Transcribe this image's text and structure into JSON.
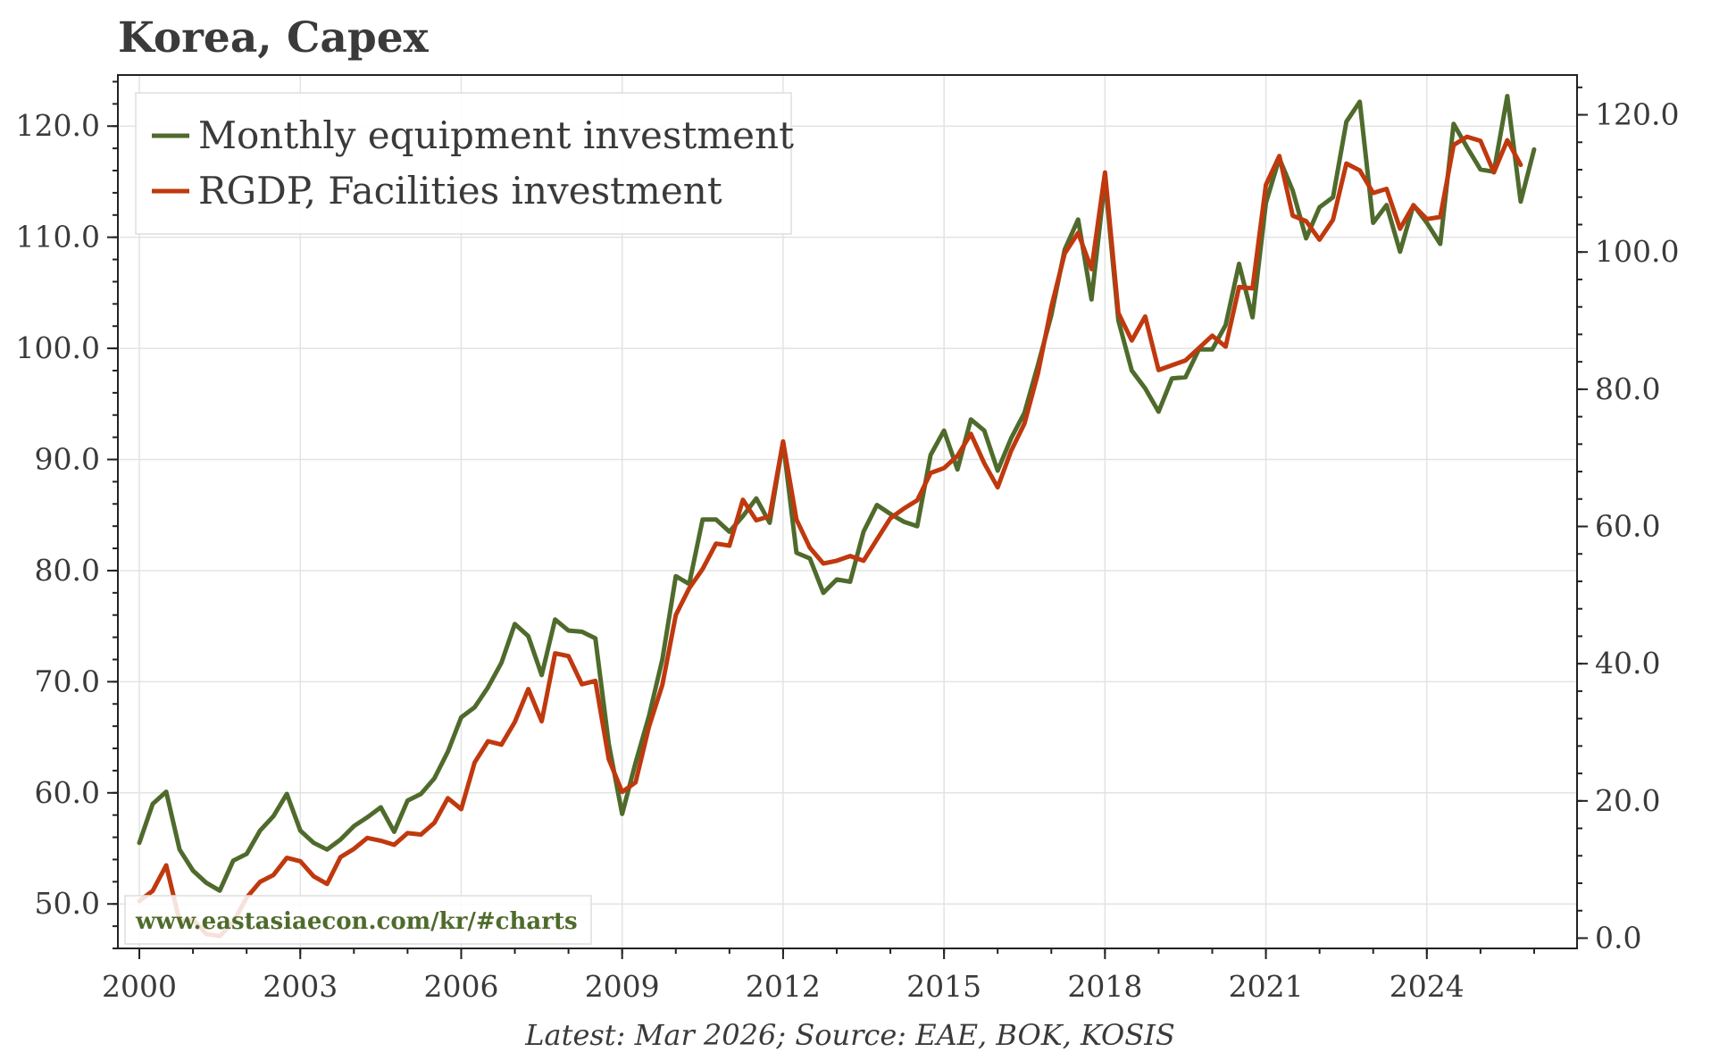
{
  "chart_data": {
    "type": "line",
    "title": "Korea, Capex",
    "source_note": "Latest: Mar 2026; Source: EAE, BOK, KOSIS",
    "watermark": "www.eastasiaecon.com/kr/#charts",
    "x_tick_labels": [
      "2000",
      "2003",
      "2006",
      "2009",
      "2012",
      "2015",
      "2018",
      "2021",
      "2024"
    ],
    "xlim": [
      1999.6,
      2026.8
    ],
    "grid": true,
    "legend_position": "top-left",
    "y_left": {
      "ylim": [
        46.0,
        124.6
      ],
      "ticks": [
        "50.0",
        "60.0",
        "70.0",
        "80.0",
        "90.0",
        "100.0",
        "110.0",
        "120.0"
      ]
    },
    "y_right": {
      "ylim": [
        -1.5,
        125.8
      ],
      "ticks": [
        "0.0",
        "20.0",
        "40.0",
        "60.0",
        "80.0",
        "100.0",
        "120.0"
      ]
    },
    "series": [
      {
        "name": "Monthly equipment investment",
        "axis": "left",
        "color": "#4f6b2c",
        "x": [
          2000.0,
          2000.25,
          2000.5,
          2000.75,
          2001.0,
          2001.25,
          2001.5,
          2001.75,
          2002.0,
          2002.25,
          2002.5,
          2002.75,
          2003.0,
          2003.25,
          2003.5,
          2003.75,
          2004.0,
          2004.25,
          2004.5,
          2004.75,
          2005.0,
          2005.25,
          2005.5,
          2005.75,
          2006.0,
          2006.25,
          2006.5,
          2006.75,
          2007.0,
          2007.25,
          2007.5,
          2007.75,
          2008.0,
          2008.25,
          2008.5,
          2008.75,
          2009.0,
          2009.25,
          2009.5,
          2009.75,
          2010.0,
          2010.25,
          2010.5,
          2010.75,
          2011.0,
          2011.25,
          2011.5,
          2011.75,
          2012.0,
          2012.25,
          2012.5,
          2012.75,
          2013.0,
          2013.25,
          2013.5,
          2013.75,
          2014.0,
          2014.25,
          2014.5,
          2014.75,
          2015.0,
          2015.25,
          2015.5,
          2015.75,
          2016.0,
          2016.25,
          2016.5,
          2016.75,
          2017.0,
          2017.25,
          2017.5,
          2017.75,
          2018.0,
          2018.25,
          2018.5,
          2018.75,
          2019.0,
          2019.25,
          2019.5,
          2019.75,
          2020.0,
          2020.25,
          2020.5,
          2020.75,
          2021.0,
          2021.25,
          2021.5,
          2021.75,
          2022.0,
          2022.25,
          2022.5,
          2022.75,
          2023.0,
          2023.25,
          2023.5,
          2023.75,
          2024.0,
          2024.25,
          2024.5,
          2024.75,
          2025.0,
          2025.25,
          2025.5,
          2025.75,
          2026.0
        ],
        "values": [
          55.5,
          59.0,
          60.1,
          54.9,
          53.0,
          51.9,
          51.2,
          53.9,
          54.5,
          56.6,
          57.9,
          59.9,
          56.6,
          55.5,
          54.9,
          55.8,
          57.0,
          57.8,
          58.7,
          56.5,
          59.3,
          59.9,
          61.3,
          63.7,
          66.8,
          67.7,
          69.5,
          71.7,
          75.2,
          74.1,
          70.6,
          75.6,
          74.6,
          74.5,
          73.9,
          64.4,
          58.1,
          62.7,
          66.9,
          72.0,
          79.5,
          78.8,
          84.6,
          84.6,
          83.5,
          84.9,
          86.5,
          84.3,
          91.6,
          81.6,
          81.1,
          78.0,
          79.2,
          79.0,
          83.5,
          85.9,
          85.1,
          84.4,
          84.0,
          90.4,
          92.6,
          89.1,
          93.6,
          92.6,
          89.0,
          91.9,
          94.2,
          98.5,
          103.0,
          108.9,
          111.6,
          104.4,
          115.2,
          102.5,
          98.0,
          96.4,
          94.3,
          97.3,
          97.4,
          99.9,
          99.9,
          102.1,
          107.6,
          102.8,
          113.1,
          117.1,
          114.2,
          109.9,
          112.7,
          113.6,
          120.4,
          122.2,
          111.3,
          112.9,
          108.7,
          112.9,
          111.3,
          109.4,
          120.2,
          118.1,
          116.1,
          115.9,
          122.7,
          113.2,
          117.9
        ]
      },
      {
        "name": "RGDP, Facilities investment",
        "axis": "right",
        "color": "#c0390e",
        "x": [
          2000.0,
          2000.25,
          2000.5,
          2000.75,
          2001.0,
          2001.25,
          2001.5,
          2001.75,
          2002.0,
          2002.25,
          2002.5,
          2002.75,
          2003.0,
          2003.25,
          2003.5,
          2003.75,
          2004.0,
          2004.25,
          2004.5,
          2004.75,
          2005.0,
          2005.25,
          2005.5,
          2005.75,
          2006.0,
          2006.25,
          2006.5,
          2006.75,
          2007.0,
          2007.25,
          2007.5,
          2007.75,
          2008.0,
          2008.25,
          2008.5,
          2008.75,
          2009.0,
          2009.25,
          2009.5,
          2009.75,
          2010.0,
          2010.25,
          2010.5,
          2010.75,
          2011.0,
          2011.25,
          2011.5,
          2011.75,
          2012.0,
          2012.25,
          2012.5,
          2012.75,
          2013.0,
          2013.25,
          2013.5,
          2013.75,
          2014.0,
          2014.25,
          2014.5,
          2014.75,
          2015.0,
          2015.25,
          2015.5,
          2015.75,
          2016.0,
          2016.25,
          2016.5,
          2016.75,
          2017.0,
          2017.25,
          2017.5,
          2017.75,
          2018.0,
          2018.25,
          2018.5,
          2018.75,
          2019.0,
          2019.25,
          2019.5,
          2019.75,
          2020.0,
          2020.25,
          2020.5,
          2020.75,
          2021.0,
          2021.25,
          2021.5,
          2021.75,
          2022.0,
          2022.25,
          2022.5,
          2022.75,
          2023.0,
          2023.25,
          2023.5,
          2023.75,
          2024.0,
          2024.25,
          2024.5,
          2024.75,
          2025.0,
          2025.25,
          2025.5,
          2025.75
        ],
        "values": [
          5.4,
          6.9,
          10.6,
          2.5,
          2.7,
          0.6,
          0.3,
          2.3,
          5.9,
          8.2,
          9.2,
          11.7,
          11.2,
          9.0,
          7.9,
          11.8,
          13.0,
          14.6,
          14.2,
          13.6,
          15.3,
          15.1,
          16.8,
          20.4,
          18.8,
          25.6,
          28.7,
          28.2,
          31.5,
          36.3,
          31.6,
          41.5,
          41.1,
          37.0,
          37.5,
          26.1,
          21.3,
          22.7,
          30.8,
          36.9,
          47.1,
          51.0,
          53.8,
          57.5,
          57.2,
          63.9,
          60.9,
          61.5,
          72.4,
          61.0,
          56.9,
          54.6,
          55.0,
          55.7,
          55.0,
          58.1,
          61.2,
          62.6,
          63.8,
          67.8,
          68.5,
          70.3,
          73.5,
          69.2,
          65.7,
          71.0,
          75.0,
          82.3,
          92.0,
          99.8,
          102.8,
          97.5,
          111.6,
          91.1,
          87.1,
          90.6,
          82.8,
          83.5,
          84.2,
          86.0,
          87.8,
          86.2,
          94.9,
          94.7,
          109.8,
          114.0,
          105.3,
          104.5,
          101.8,
          104.7,
          112.9,
          111.9,
          108.6,
          109.2,
          103.4,
          106.8,
          104.8,
          105.1,
          115.6,
          116.8,
          116.2,
          111.6,
          116.3,
          112.7
        ]
      }
    ]
  }
}
